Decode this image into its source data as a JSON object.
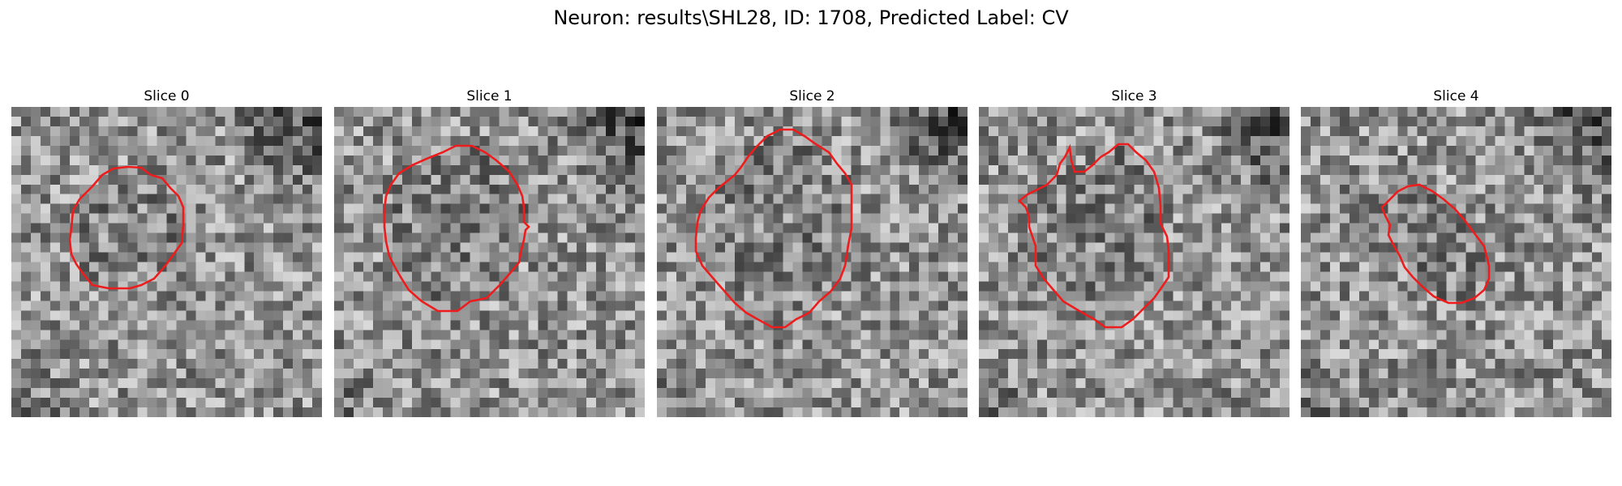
{
  "figure": {
    "title": "Neuron: results\\SHL28, ID: 1708, Predicted Label: CV"
  },
  "slices": [
    {
      "label": "Slice 0",
      "image": "grayscale microscopy patch with faint round cell body",
      "contour_color": "#ee1c1c"
    },
    {
      "label": "Slice 1",
      "image": "grayscale microscopy patch with large round cell body",
      "contour_color": "#ee1c1c"
    },
    {
      "label": "Slice 2",
      "image": "grayscale microscopy patch with bright oval cell body",
      "contour_color": "#ee1c1c"
    },
    {
      "label": "Slice 3",
      "image": "grayscale microscopy patch with irregular cell body",
      "contour_color": "#ee1c1c"
    },
    {
      "label": "Slice 4",
      "image": "grayscale microscopy patch with small cell body",
      "contour_color": "#ee1c1c"
    }
  ]
}
